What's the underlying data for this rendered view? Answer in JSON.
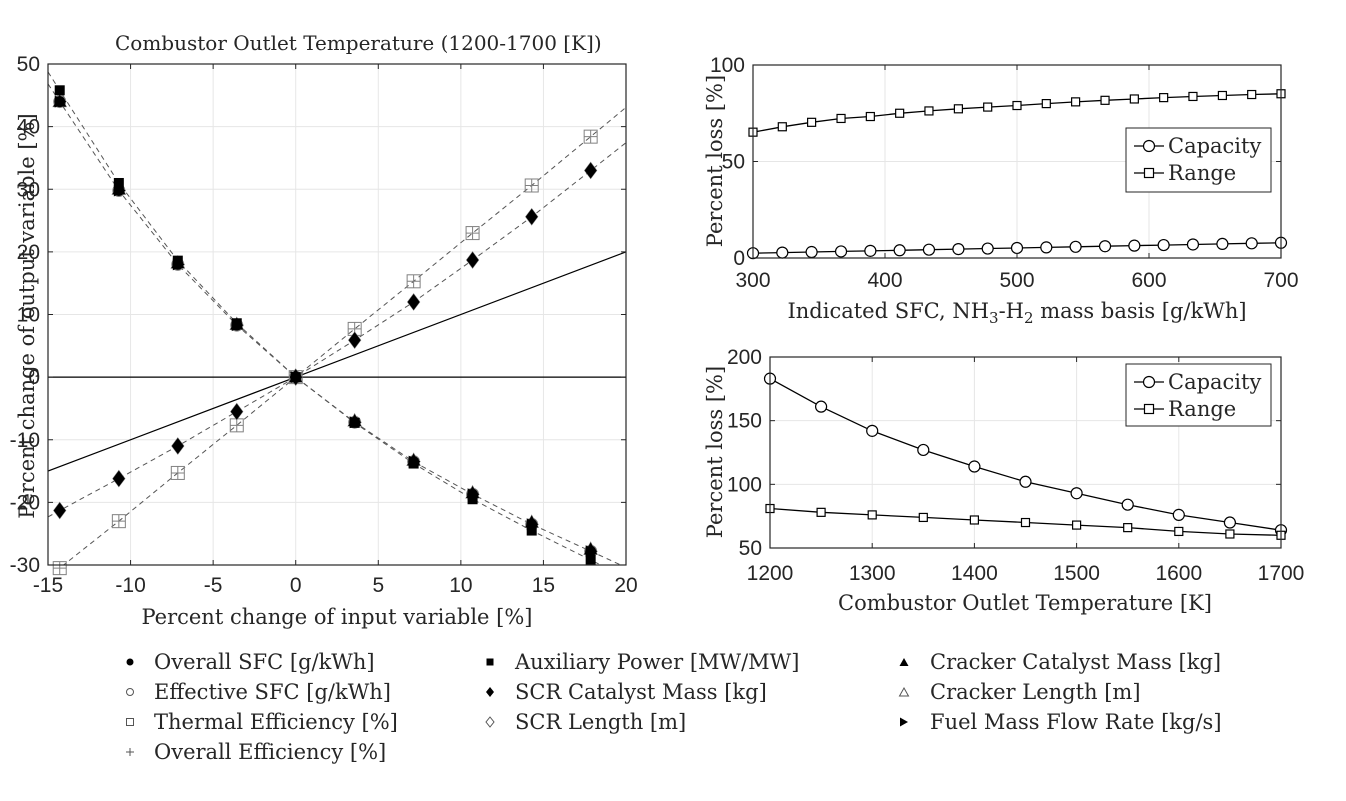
{
  "colors": {
    "axis": "#262626",
    "grid": "#e6e6e6",
    "dark": "#000000",
    "hollow": "#808080"
  },
  "chart_data": [
    {
      "id": "sensitivity",
      "type": "scatter",
      "title": "Combustor Outlet Temperature (1200-1700 [K])",
      "xlabel": "Percent change of input variable [%]",
      "ylabel": "Percent change of output variable [%]",
      "xlim": [
        -15,
        20
      ],
      "ylim": [
        -30,
        50
      ],
      "xticks": [
        -15,
        -10,
        -5,
        0,
        5,
        10,
        15,
        20
      ],
      "yticks": [
        -30,
        -20,
        -10,
        0,
        10,
        20,
        30,
        40,
        50
      ],
      "xtick_labels": [
        "-15",
        "-10",
        "-5",
        "0",
        "5",
        "10",
        "15",
        "20"
      ],
      "ytick_labels": [
        "-30",
        "-20",
        "-10",
        "0",
        "10",
        "20",
        "30",
        "40",
        "50"
      ],
      "x": [
        -14.29,
        -10.71,
        -7.14,
        -3.57,
        0,
        3.57,
        7.14,
        10.71,
        14.29,
        17.86
      ],
      "reference_lines": [
        {
          "name": "y=x",
          "points": [
            [
              -15,
              -15
            ],
            [
              20,
              20
            ]
          ]
        },
        {
          "name": "y=0",
          "points": [
            [
              -15,
              0
            ],
            [
              20,
              0
            ]
          ]
        }
      ],
      "series": [
        {
          "name": "Overall SFC [g/kWh]",
          "marker": "circle-filled",
          "values": [
            44,
            29.8,
            18,
            8.3,
            0,
            -7.2,
            -13.5,
            -18.7,
            -23.5,
            -27.8
          ]
        },
        {
          "name": "Effective SFC [g/kWh]",
          "marker": "circle-open",
          "values": [
            44,
            29.8,
            18,
            8.3,
            0,
            -7.2,
            -13.5,
            -18.7,
            -23.5,
            -27.8
          ]
        },
        {
          "name": "Thermal Efficiency [%]",
          "marker": "square-open",
          "values": [
            -30.5,
            -23,
            -15.3,
            -7.7,
            0,
            7.7,
            15.3,
            23,
            30.6,
            38.4
          ]
        },
        {
          "name": "Overall Efficiency [%]",
          "marker": "plus",
          "values": [
            -30.5,
            -23,
            -15.3,
            -7.7,
            0,
            7.7,
            15.3,
            23,
            30.6,
            38.4
          ]
        },
        {
          "name": "Auxiliary Power [MW/MW]",
          "marker": "square-filled",
          "values": [
            45.8,
            31,
            18.6,
            8.6,
            0,
            -7.3,
            -13.8,
            -19.5,
            -24.5,
            -29.2
          ]
        },
        {
          "name": "SCR Catalyst Mass [kg]",
          "marker": "diamond-filled",
          "values": [
            -21.3,
            -16.2,
            -11,
            -5.5,
            0,
            5.9,
            12,
            18.7,
            25.6,
            33
          ]
        },
        {
          "name": "SCR Length [m]",
          "marker": "diamond-open",
          "values": [
            -21.3,
            -16.2,
            -11,
            -5.5,
            0,
            5.9,
            12,
            18.7,
            25.6,
            33
          ]
        },
        {
          "name": "Cracker Catalyst Mass [kg]",
          "marker": "triangle-up-filled",
          "values": [
            44,
            30,
            18.2,
            8.4,
            0,
            -7,
            -13.3,
            -18.5,
            -23.2,
            -27.5
          ]
        },
        {
          "name": "Cracker Length [m]",
          "marker": "triangle-up-open",
          "values": [
            44,
            30,
            18.2,
            8.4,
            0,
            -7,
            -13.3,
            -18.5,
            -23.2,
            -27.5
          ]
        },
        {
          "name": "Fuel Mass Flow Rate [kg/s]",
          "marker": "triangle-right-filled",
          "values": [
            44,
            29.8,
            18,
            8.3,
            0,
            -7.2,
            -13.5,
            -18.7,
            -23.5,
            -27.8
          ]
        }
      ],
      "legend": {
        "placement": "bottom",
        "columns": [
          [
            "Overall SFC [g/kWh]",
            "Effective SFC [g/kWh]",
            "Thermal Efficiency [%]",
            "Overall Efficiency [%]"
          ],
          [
            "Auxiliary Power [MW/MW]",
            "SCR Catalyst Mass [kg]",
            "SCR Length [m]"
          ],
          [
            "Cracker Catalyst Mass [kg]",
            "Cracker Length [m]",
            "Fuel Mass Flow Rate [kg/s]"
          ]
        ]
      }
    },
    {
      "id": "sfc",
      "type": "line",
      "xlabel_pre": "Indicated SFC, NH",
      "xlabel_sub1": "3",
      "xlabel_mid": "-H",
      "xlabel_sub2": "2",
      "xlabel_post": " mass basis [g/kWh]",
      "ylabel": "Percent loss [%]",
      "xlim": [
        300,
        700
      ],
      "ylim": [
        0,
        100
      ],
      "xticks": [
        300,
        400,
        500,
        600,
        700
      ],
      "yticks": [
        0,
        50,
        100
      ],
      "xtick_labels": [
        "300",
        "400",
        "500",
        "600",
        "700"
      ],
      "ytick_labels": [
        "0",
        "50",
        "100"
      ],
      "x": [
        300,
        322.2,
        344.4,
        366.7,
        388.9,
        411.1,
        433.3,
        455.6,
        477.8,
        500,
        522.2,
        544.4,
        566.7,
        588.9,
        611.1,
        633.3,
        655.6,
        677.8,
        700
      ],
      "series": [
        {
          "name": "Capacity",
          "marker": "circle-open",
          "values": [
            2.5,
            2.8,
            3.1,
            3.4,
            3.7,
            4.0,
            4.3,
            4.6,
            4.9,
            5.2,
            5.5,
            5.8,
            6.1,
            6.4,
            6.7,
            7.0,
            7.3,
            7.6,
            7.9
          ]
        },
        {
          "name": "Range",
          "marker": "square-open",
          "values": [
            65.2,
            68.0,
            70.3,
            72.3,
            73.3,
            75.0,
            76.2,
            77.3,
            78.2,
            79.0,
            80.0,
            80.9,
            81.7,
            82.4,
            83.1,
            83.7,
            84.2,
            84.7,
            85.1
          ]
        }
      ],
      "legend": {
        "placement": "right",
        "labels": [
          "Capacity",
          "Range"
        ]
      }
    },
    {
      "id": "temp",
      "type": "line",
      "xlabel": "Combustor Outlet Temperature [K]",
      "ylabel": "Percent loss [%]",
      "xlim": [
        1200,
        1700
      ],
      "ylim": [
        50,
        200
      ],
      "xticks": [
        1200,
        1300,
        1400,
        1500,
        1600,
        1700
      ],
      "yticks": [
        50,
        100,
        150,
        200
      ],
      "xtick_labels": [
        "1200",
        "1300",
        "1400",
        "1500",
        "1600",
        "1700"
      ],
      "ytick_labels": [
        "50",
        "100",
        "150",
        "200"
      ],
      "x": [
        1200,
        1250,
        1300,
        1350,
        1400,
        1450,
        1500,
        1550,
        1600,
        1650,
        1700
      ],
      "series": [
        {
          "name": "Capacity",
          "marker": "circle-open",
          "values": [
            183,
            161,
            142,
            127,
            114,
            102,
            93,
            84,
            76,
            70,
            64
          ]
        },
        {
          "name": "Range",
          "marker": "square-open",
          "values": [
            81,
            78,
            76,
            74,
            72,
            70,
            68,
            66,
            63,
            61,
            60
          ]
        }
      ],
      "legend": {
        "placement": "top-right",
        "labels": [
          "Capacity",
          "Range"
        ]
      }
    }
  ]
}
